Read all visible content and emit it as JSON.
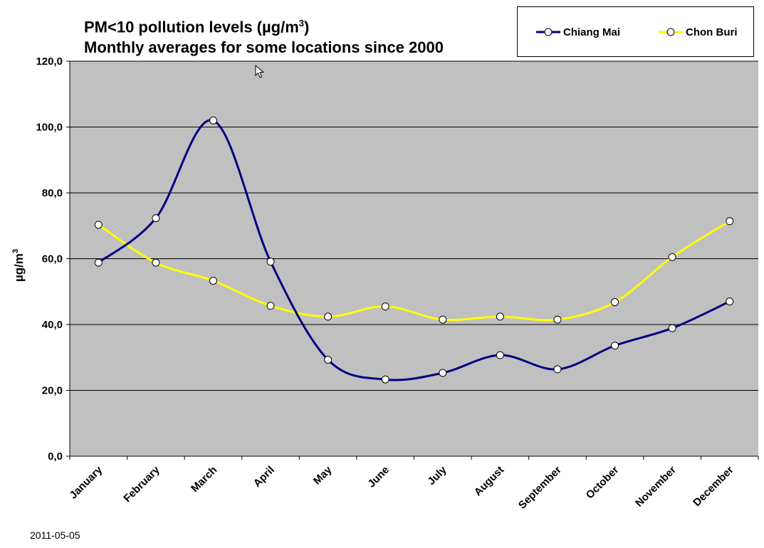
{
  "chart_data": {
    "type": "line",
    "title_line1": "PM<10 pollution levels (µg/m",
    "title_sup": "3",
    "title_line1_end": ")",
    "title_line2": "Monthly averages for some locations since 2000",
    "ylabel": "µg/m",
    "ylabel_sup": "3",
    "ylim": [
      0,
      120
    ],
    "yticks": [
      "0,0",
      "20,0",
      "40,0",
      "60,0",
      "80,0",
      "100,0",
      "120,0"
    ],
    "ytick_values": [
      0,
      20,
      40,
      60,
      80,
      100,
      120
    ],
    "categories": [
      "January",
      "February",
      "March",
      "April",
      "May",
      "June",
      "July",
      "August",
      "September",
      "October",
      "November",
      "December"
    ],
    "series": [
      {
        "name": "Chiang Mai",
        "color": "#000080",
        "values": [
          58.8,
          72.3,
          102.0,
          59.1,
          29.3,
          23.3,
          25.3,
          30.7,
          26.4,
          33.6,
          38.9,
          47.0
        ]
      },
      {
        "name": "Chon Buri",
        "color": "#ffff00",
        "values": [
          70.3,
          58.8,
          53.3,
          45.7,
          42.4,
          45.5,
          41.5,
          42.4,
          41.5,
          46.8,
          60.5,
          71.4
        ]
      }
    ],
    "grid": true,
    "plot_background": "#c0c0c0",
    "legend_position": "top-right"
  },
  "footer": {
    "date": "2011-05-05"
  }
}
